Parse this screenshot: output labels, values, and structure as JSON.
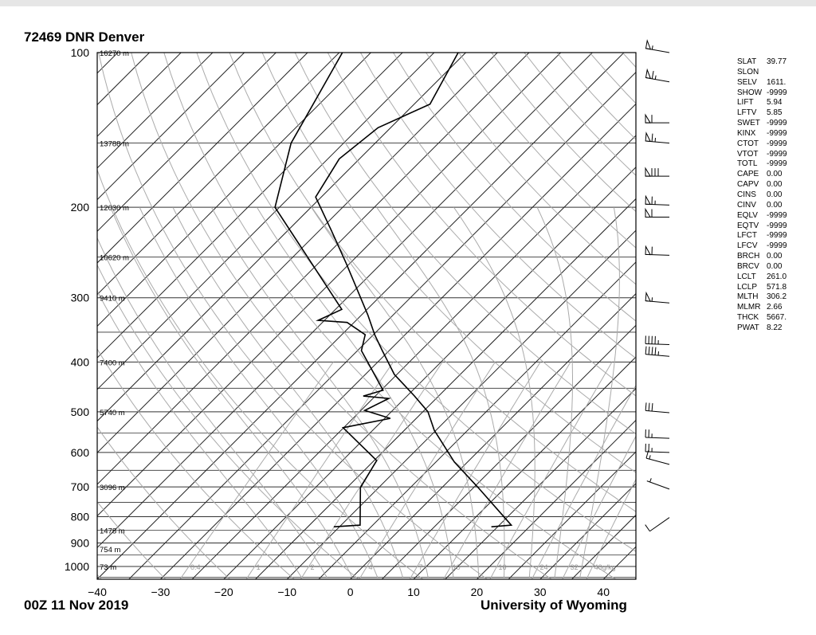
{
  "header": {
    "title": "72469 DNR Denver"
  },
  "footer": {
    "date": "00Z 11 Nov 2019",
    "org": "University of Wyoming"
  },
  "indices": [
    {
      "k": "SLAT",
      "v": "39.77"
    },
    {
      "k": "SLON",
      "v": ""
    },
    {
      "k": "SELV",
      "v": "1611."
    },
    {
      "k": "SHOW",
      "v": "-9999"
    },
    {
      "k": "LIFT",
      "v": "5.94"
    },
    {
      "k": "LFTV",
      "v": "5.85"
    },
    {
      "k": "SWET",
      "v": "-9999"
    },
    {
      "k": "KINX",
      "v": "-9999"
    },
    {
      "k": "CTOT",
      "v": "-9999"
    },
    {
      "k": "VTOT",
      "v": "-9999"
    },
    {
      "k": "TOTL",
      "v": "-9999"
    },
    {
      "k": "CAPE",
      "v": "0.00"
    },
    {
      "k": "CAPV",
      "v": "0.00"
    },
    {
      "k": "CINS",
      "v": "0.00"
    },
    {
      "k": "CINV",
      "v": "0.00"
    },
    {
      "k": "EQLV",
      "v": "-9999"
    },
    {
      "k": "EQTV",
      "v": "-9999"
    },
    {
      "k": "LFCT",
      "v": "-9999"
    },
    {
      "k": "LFCV",
      "v": "-9999"
    },
    {
      "k": "BRCH",
      "v": "0.00"
    },
    {
      "k": "BRCV",
      "v": "0.00"
    },
    {
      "k": "LCLT",
      "v": "261.0"
    },
    {
      "k": "LCLP",
      "v": "571.8"
    },
    {
      "k": "MLTH",
      "v": "306.2"
    },
    {
      "k": "MLMR",
      "v": "2.66"
    },
    {
      "k": "THCK",
      "v": "5667."
    },
    {
      "k": "PWAT",
      "v": "8.22"
    }
  ],
  "chart_data": {
    "type": "skew-t",
    "ylabel_units": "hPa",
    "y_scale": "log",
    "ylim": [
      1050,
      100
    ],
    "xlim": [
      -40,
      45
    ],
    "pressure_ticks": [
      "100",
      "200",
      "300",
      "400",
      "500",
      "600",
      "700",
      "800",
      "900",
      "1000"
    ],
    "pressure_values": [
      100,
      200,
      300,
      400,
      500,
      600,
      700,
      800,
      900,
      1000
    ],
    "temp_ticks": [
      "−40",
      "−30",
      "−20",
      "−10",
      "0",
      "10",
      "20",
      "30",
      "40"
    ],
    "temp_values": [
      -40,
      -30,
      -20,
      -10,
      0,
      10,
      20,
      30,
      40
    ],
    "heights": [
      {
        "p": 100,
        "label": "16270 m"
      },
      {
        "p": 150,
        "label": "13788 m"
      },
      {
        "p": 200,
        "label": "12030 m"
      },
      {
        "p": 250,
        "label": "10620 m"
      },
      {
        "p": 300,
        "label": "9410 m"
      },
      {
        "p": 400,
        "label": "7400 m"
      },
      {
        "p": 500,
        "label": "5740 m"
      },
      {
        "p": 700,
        "label": "3096 m"
      },
      {
        "p": 850,
        "label": "1478 m"
      },
      {
        "p": 925,
        "label": "754 m"
      },
      {
        "p": 1000,
        "label": "73 m"
      }
    ],
    "mixing_ratio_labels": [
      {
        "w": 0.4,
        "label": "0.4"
      },
      {
        "w": 1,
        "label": "1"
      },
      {
        "w": 2,
        "label": "2"
      },
      {
        "w": 4,
        "label": "4"
      },
      {
        "w": 7,
        "label": "7"
      },
      {
        "w": 10,
        "label": "10"
      },
      {
        "w": 16,
        "label": "16"
      },
      {
        "w": 24,
        "label": "24"
      },
      {
        "w": 32,
        "label": "32"
      },
      {
        "w": 40,
        "label": "40g/kg"
      }
    ],
    "temperature": [
      [
        837,
        14.0
      ],
      [
        831,
        16.9
      ],
      [
        702,
        5.7
      ],
      [
        626,
        -2.1
      ],
      [
        543,
        -10.3
      ],
      [
        500,
        -14.2
      ],
      [
        466,
        -18.8
      ],
      [
        423,
        -25.4
      ],
      [
        380,
        -31.1
      ],
      [
        354,
        -34.8
      ],
      [
        324,
        -39.0
      ],
      [
        257,
        -50.6
      ],
      [
        222,
        -58.1
      ],
      [
        191,
        -65.9
      ],
      [
        161,
        -68.2
      ],
      [
        140,
        -67.0
      ],
      [
        126,
        -62.5
      ],
      [
        100,
        -66.2
      ]
    ],
    "dewpoint": [
      [
        837,
        -10.9
      ],
      [
        831,
        -7.0
      ],
      [
        702,
        -12.9
      ],
      [
        622,
        -14.6
      ],
      [
        537,
        -25.1
      ],
      [
        515,
        -19.1
      ],
      [
        497,
        -24.4
      ],
      [
        471,
        -22.5
      ],
      [
        466,
        -26.9
      ],
      [
        454,
        -24.7
      ],
      [
        380,
        -34.4
      ],
      [
        354,
        -36.3
      ],
      [
        335,
        -41.1
      ],
      [
        332,
        -46.0
      ],
      [
        316,
        -44.0
      ],
      [
        200,
        -70.7
      ],
      [
        150,
        -78.3
      ],
      [
        100,
        -84.5
      ]
    ],
    "wind_barbs_kt": [
      {
        "p": 100,
        "dir": 280,
        "spd": 55
      },
      {
        "p": 114,
        "dir": 280,
        "spd": 65
      },
      {
        "p": 137,
        "dir": 270,
        "spd": 60
      },
      {
        "p": 150,
        "dir": 275,
        "spd": 65
      },
      {
        "p": 174,
        "dir": 270,
        "spd": 80
      },
      {
        "p": 198,
        "dir": 272,
        "spd": 65
      },
      {
        "p": 209,
        "dir": 270,
        "spd": 60
      },
      {
        "p": 248,
        "dir": 272,
        "spd": 60
      },
      {
        "p": 307,
        "dir": 275,
        "spd": 55
      },
      {
        "p": 370,
        "dir": 272,
        "spd": 45
      },
      {
        "p": 390,
        "dir": 275,
        "spd": 45
      },
      {
        "p": 502,
        "dir": 275,
        "spd": 30
      },
      {
        "p": 563,
        "dir": 272,
        "spd": 25
      },
      {
        "p": 600,
        "dir": 272,
        "spd": 25
      },
      {
        "p": 633,
        "dir": 285,
        "spd": 15
      },
      {
        "p": 707,
        "dir": 290,
        "spd": 5
      },
      {
        "p": 803,
        "dir": 235,
        "spd": 10
      }
    ],
    "grid": true,
    "colors": {
      "isotherm": "#222222",
      "adiabat": "#aaaaaa",
      "profile": "#000000"
    }
  }
}
